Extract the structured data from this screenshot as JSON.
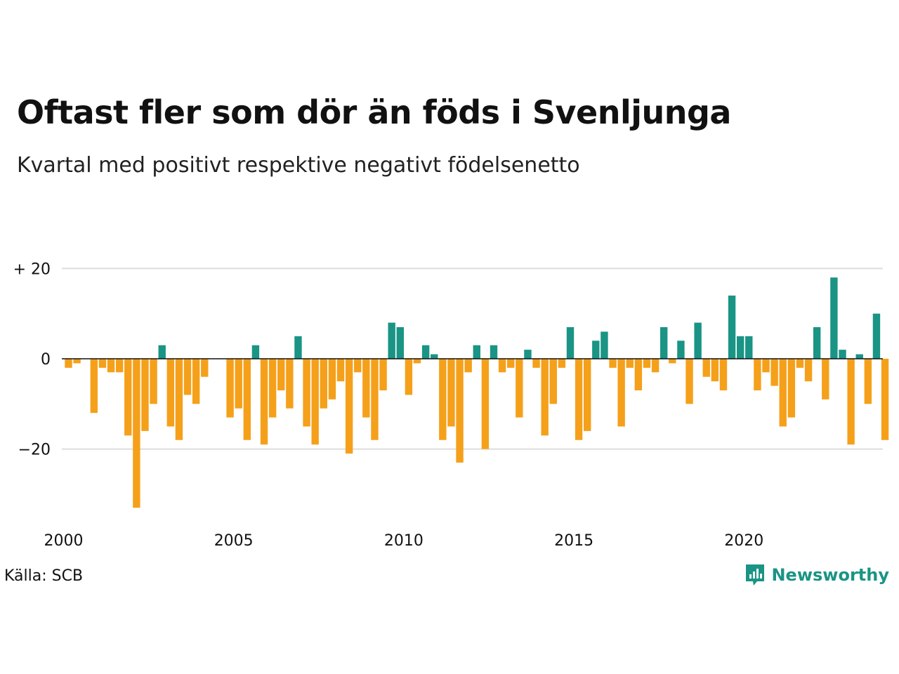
{
  "header": {
    "title": "Oftast fler som dör än föds i Svenljunga",
    "subtitle": "Kvartal med positivt respektive negativt födelsenetto"
  },
  "footer": {
    "source": "Källa: SCB",
    "brand": "Newsworthy"
  },
  "colors": {
    "positive": "#1a9485",
    "negative": "#f5a01a",
    "grid": "#dddddd",
    "zero_line": "#111111",
    "brand": "#1a9485"
  },
  "chart_data": {
    "type": "bar",
    "x_start": "2000 Q1",
    "values": [
      -2,
      -1,
      0,
      -12,
      -2,
      -3,
      -3,
      -17,
      -33,
      -16,
      -10,
      3,
      -15,
      -18,
      -8,
      -10,
      -4,
      0,
      0,
      -13,
      -11,
      -18,
      3,
      -19,
      -13,
      -7,
      -11,
      5,
      -15,
      -19,
      -11,
      -9,
      -5,
      -21,
      -3,
      -13,
      -18,
      -7,
      8,
      7,
      -8,
      -1,
      3,
      1,
      -18,
      -15,
      -23,
      -3,
      3,
      -20,
      3,
      -3,
      -2,
      -13,
      2,
      -2,
      -17,
      -10,
      -2,
      7,
      -18,
      -16,
      4,
      6,
      -2,
      -15,
      -2,
      -7,
      -2,
      -3,
      7,
      -1,
      4,
      -10,
      8,
      -4,
      -5,
      -7,
      14,
      5,
      5,
      -7,
      -3,
      -6,
      -15,
      -13,
      -2,
      -5,
      7,
      -9,
      18,
      2,
      -19,
      1,
      -10,
      10,
      -18
    ],
    "y_ticks": [
      {
        "value": 20,
        "label": "+ 20"
      },
      {
        "value": 0,
        "label": "0"
      },
      {
        "value": -20,
        "label": "−20"
      }
    ],
    "x_ticks": [
      {
        "year": 2000,
        "label": "2000"
      },
      {
        "year": 2005,
        "label": "2005"
      },
      {
        "year": 2010,
        "label": "2010"
      },
      {
        "year": 2015,
        "label": "2015"
      },
      {
        "year": 2020,
        "label": "2020"
      }
    ],
    "ylim": [
      -35,
      22
    ],
    "grid": true,
    "legend": "none"
  }
}
